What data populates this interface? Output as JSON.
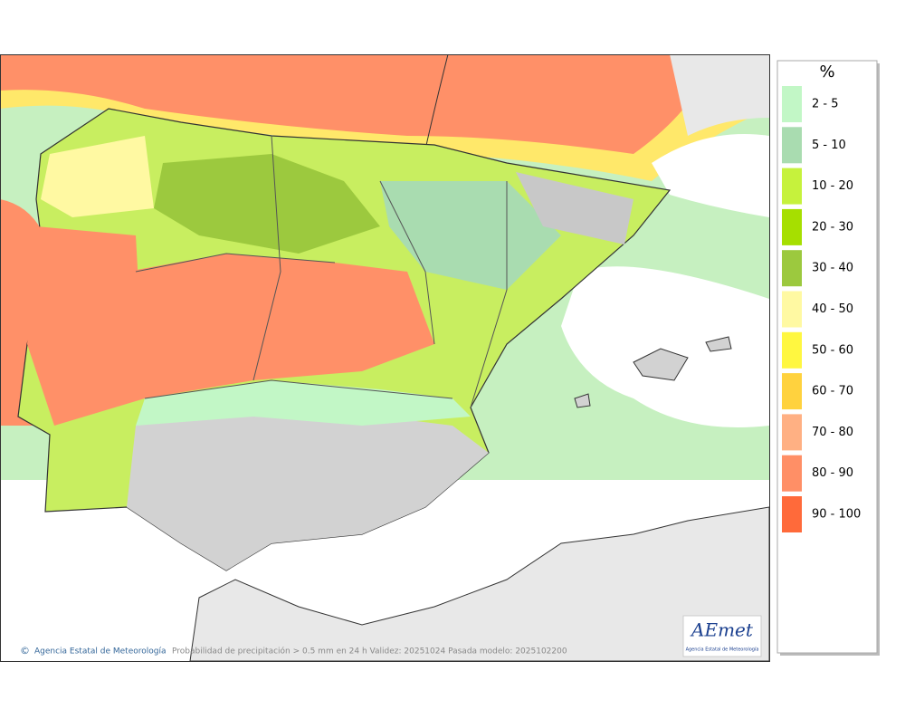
{
  "legend": {
    "title": "%",
    "items": [
      {
        "label": "2 - 5",
        "color": "#c2f7c6"
      },
      {
        "label": "5 - 10",
        "color": "#a9dcb0"
      },
      {
        "label": "10 - 20",
        "color": "#c6f23c"
      },
      {
        "label": "20 - 30",
        "color": "#a6df00"
      },
      {
        "label": "30 - 40",
        "color": "#9cc93e"
      },
      {
        "label": "40 - 50",
        "color": "#fff9a2"
      },
      {
        "label": "50 - 60",
        "color": "#fff740"
      },
      {
        "label": "60 - 70",
        "color": "#ffd23e"
      },
      {
        "label": "70 - 80",
        "color": "#ffb083"
      },
      {
        "label": "80 - 90",
        "color": "#ff8f66"
      },
      {
        "label": "90 - 100",
        "color": "#ff6a3a"
      }
    ]
  },
  "footer": {
    "agency": "Agencia Estatal de Meteorología",
    "caption": "Probabilidad de precipitación > 0.5 mm en 24 h Validez: 20251024 Pasada modelo: 2025102200"
  },
  "logo": {
    "name": "AEmet",
    "subtitle": "Agencia Estatal de Meteorología"
  }
}
